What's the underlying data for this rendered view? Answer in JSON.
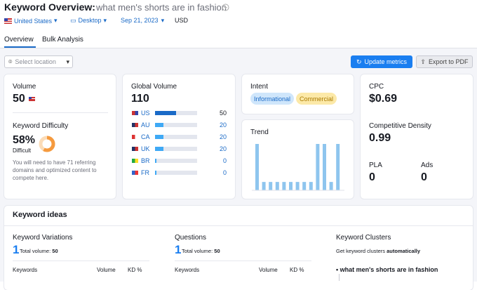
{
  "header": {
    "title": "Keyword Overview:",
    "keyword": "what men's shorts are in fashion",
    "country": "United States",
    "device": "Desktop",
    "date": "Sep 21, 2023",
    "currency": "USD"
  },
  "tabs": [
    "Overview",
    "Bulk Analysis"
  ],
  "toolbar": {
    "location": "Select location",
    "update": "Update metrics",
    "export": "Export to PDF"
  },
  "volume": {
    "label": "Volume",
    "value": 50
  },
  "difficulty": {
    "label": "Keyword Difficulty",
    "score": {
      "value": 58,
      "label": "58%"
    },
    "level": "Difficult",
    "note": "You will need to have 71 referring domains and optimized content to compete here."
  },
  "global_volume": {
    "label": "Global Volume",
    "total": 110,
    "countries": [
      {
        "code": "US",
        "value": 50
      },
      {
        "code": "AU",
        "value": 20
      },
      {
        "code": "CA",
        "value": 20
      },
      {
        "code": "UK",
        "value": 20
      },
      {
        "code": "BR",
        "value": 0
      },
      {
        "code": "FR",
        "value": 0
      }
    ]
  },
  "intent": {
    "label": "Intent",
    "tags": [
      "Informational",
      "Commercial"
    ]
  },
  "trend": {
    "label": "Trend",
    "values": [
      100,
      18,
      18,
      18,
      18,
      18,
      18,
      18,
      18,
      100,
      100,
      18,
      100
    ]
  },
  "cpc": {
    "label": "CPC",
    "value": "$0.69"
  },
  "density": {
    "label": "Competitive Density",
    "value": 0.99
  },
  "pla": {
    "label": "PLA",
    "value": 0
  },
  "ads": {
    "label": "Ads",
    "value": 0
  },
  "ideas": {
    "title": "Keyword ideas",
    "variations": {
      "label": "Keyword Variations",
      "count": 1,
      "total_label": "Total volume:",
      "total": 50
    },
    "questions": {
      "label": "Questions",
      "count": 1,
      "total_label": "Total volume:",
      "total": 50
    },
    "clusters": {
      "label": "Keyword Clusters",
      "text": "Get keyword clusters",
      "bold": "automatically",
      "item": "what men's shorts are in fashion"
    },
    "columns": [
      "Keywords",
      "Volume",
      "KD %"
    ]
  }
}
